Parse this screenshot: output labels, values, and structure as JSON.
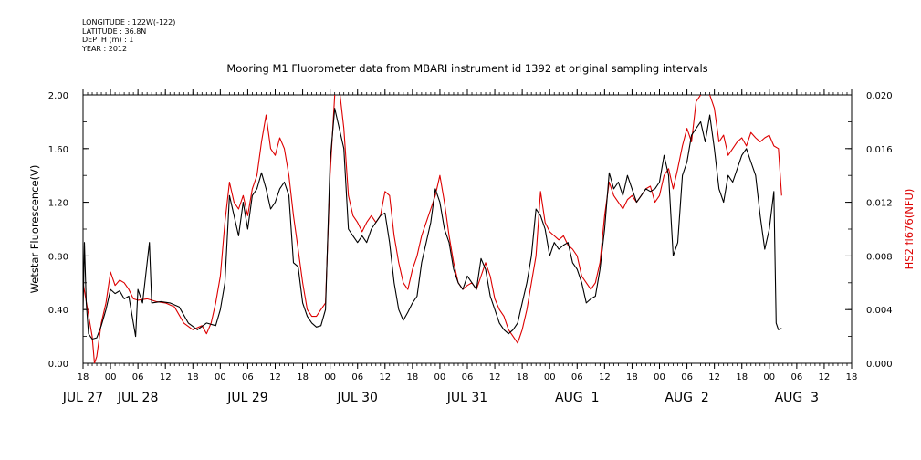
{
  "meta": {
    "longitude": "LONGITUDE : 122W(-122)",
    "latitude": "LATITUDE : 36.8N",
    "depth": "DEPTH (m) : 1",
    "year": "YEAR : 2012"
  },
  "chart_data": {
    "type": "line",
    "title": "Mooring M1 Fluorometer data from MBARI instrument id 1392 at original sampling intervals",
    "ylabel_left": "Wetstar Fluorescence(V)",
    "ylabel_right": "HS2 fl676(NFU)",
    "ylim_left": [
      0,
      2.0
    ],
    "ylim_right": [
      0,
      0.02
    ],
    "yticks_left": [
      "0.00",
      "0.40",
      "0.80",
      "1.20",
      "1.60",
      "2.00"
    ],
    "yticks_right": [
      "0.000",
      "0.004",
      "0.008",
      "0.012",
      "0.016",
      "0.020"
    ],
    "xlim_hours": [
      0,
      168
    ],
    "x_hour_ticks": [
      "18",
      "00",
      "06",
      "12",
      "18",
      "00",
      "06",
      "12",
      "18",
      "00",
      "06",
      "12",
      "18",
      "00",
      "06",
      "12",
      "18",
      "00",
      "06",
      "12",
      "18",
      "00",
      "06",
      "12",
      "18",
      "00",
      "06",
      "12",
      "18"
    ],
    "x_date_labels": [
      {
        "label": "JUL 27",
        "hour": 0
      },
      {
        "label": "JUL 28",
        "hour": 12
      },
      {
        "label": "JUL 29",
        "hour": 36
      },
      {
        "label": "JUL 30",
        "hour": 60
      },
      {
        "label": "JUL 31",
        "hour": 84
      },
      {
        "label": "AUG  1",
        "hour": 108
      },
      {
        "label": "AUG  2",
        "hour": 132
      },
      {
        "label": "AUG  3",
        "hour": 156
      }
    ],
    "x_start": "JUL 27 18:00",
    "x_unit": "hours after x_start",
    "series": [
      {
        "name": "Wetstar Fluorescence(V)",
        "axis": "left",
        "color": "#000000",
        "points": [
          [
            0,
            0.38
          ],
          [
            0.3,
            0.9
          ],
          [
            0.7,
            0.45
          ],
          [
            1.2,
            0.22
          ],
          [
            2,
            0.18
          ],
          [
            3,
            0.19
          ],
          [
            4,
            0.28
          ],
          [
            5,
            0.4
          ],
          [
            6,
            0.55
          ],
          [
            7,
            0.52
          ],
          [
            8,
            0.54
          ],
          [
            9,
            0.48
          ],
          [
            10,
            0.5
          ],
          [
            11.5,
            0.2
          ],
          [
            12,
            0.55
          ],
          [
            13,
            0.45
          ],
          [
            14.5,
            0.9
          ],
          [
            15,
            0.45
          ],
          [
            17,
            0.46
          ],
          [
            19,
            0.45
          ],
          [
            21,
            0.42
          ],
          [
            23,
            0.3
          ],
          [
            25,
            0.25
          ],
          [
            27,
            0.3
          ],
          [
            29,
            0.28
          ],
          [
            30,
            0.4
          ],
          [
            31,
            0.6
          ],
          [
            32,
            1.25
          ],
          [
            33,
            1.1
          ],
          [
            34,
            0.95
          ],
          [
            35,
            1.2
          ],
          [
            36,
            1.0
          ],
          [
            37,
            1.25
          ],
          [
            38,
            1.3
          ],
          [
            39,
            1.42
          ],
          [
            40,
            1.3
          ],
          [
            41,
            1.15
          ],
          [
            42,
            1.2
          ],
          [
            43,
            1.3
          ],
          [
            44,
            1.35
          ],
          [
            45,
            1.25
          ],
          [
            46,
            0.75
          ],
          [
            47,
            0.72
          ],
          [
            48,
            0.45
          ],
          [
            49,
            0.35
          ],
          [
            50,
            0.3
          ],
          [
            51,
            0.27
          ],
          [
            52,
            0.28
          ],
          [
            53,
            0.4
          ],
          [
            54,
            1.5
          ],
          [
            55,
            1.9
          ],
          [
            56,
            1.75
          ],
          [
            57,
            1.6
          ],
          [
            58,
            1.0
          ],
          [
            59,
            0.95
          ],
          [
            60,
            0.9
          ],
          [
            61,
            0.95
          ],
          [
            62,
            0.9
          ],
          [
            63,
            1.0
          ],
          [
            64,
            1.05
          ],
          [
            65,
            1.1
          ],
          [
            66,
            1.12
          ],
          [
            67,
            0.9
          ],
          [
            68,
            0.6
          ],
          [
            69,
            0.4
          ],
          [
            70,
            0.32
          ],
          [
            71,
            0.38
          ],
          [
            72,
            0.45
          ],
          [
            73,
            0.5
          ],
          [
            74,
            0.75
          ],
          [
            75,
            0.9
          ],
          [
            76,
            1.05
          ],
          [
            77,
            1.3
          ],
          [
            78,
            1.2
          ],
          [
            79,
            1.0
          ],
          [
            80,
            0.9
          ],
          [
            81,
            0.7
          ],
          [
            82,
            0.6
          ],
          [
            83,
            0.55
          ],
          [
            84,
            0.65
          ],
          [
            85,
            0.6
          ],
          [
            86,
            0.55
          ],
          [
            87,
            0.78
          ],
          [
            88,
            0.7
          ],
          [
            89,
            0.5
          ],
          [
            90,
            0.4
          ],
          [
            91,
            0.3
          ],
          [
            92,
            0.25
          ],
          [
            93,
            0.22
          ],
          [
            94,
            0.25
          ],
          [
            95,
            0.3
          ],
          [
            96,
            0.45
          ],
          [
            97,
            0.6
          ],
          [
            98,
            0.8
          ],
          [
            99,
            1.15
          ],
          [
            100,
            1.1
          ],
          [
            101,
            1.0
          ],
          [
            102,
            0.8
          ],
          [
            103,
            0.9
          ],
          [
            104,
            0.85
          ],
          [
            105,
            0.88
          ],
          [
            106,
            0.9
          ],
          [
            107,
            0.75
          ],
          [
            108,
            0.7
          ],
          [
            109,
            0.6
          ],
          [
            110,
            0.45
          ],
          [
            111,
            0.48
          ],
          [
            112,
            0.5
          ],
          [
            113,
            0.7
          ],
          [
            114,
            1.0
          ],
          [
            115,
            1.42
          ],
          [
            116,
            1.3
          ],
          [
            117,
            1.35
          ],
          [
            118,
            1.25
          ],
          [
            119,
            1.4
          ],
          [
            120,
            1.3
          ],
          [
            121,
            1.2
          ],
          [
            122,
            1.25
          ],
          [
            123,
            1.3
          ],
          [
            124,
            1.28
          ],
          [
            125,
            1.3
          ],
          [
            126,
            1.35
          ],
          [
            127,
            1.55
          ],
          [
            128,
            1.4
          ],
          [
            129,
            0.8
          ],
          [
            130,
            0.9
          ],
          [
            131,
            1.4
          ],
          [
            132,
            1.5
          ],
          [
            133,
            1.7
          ],
          [
            134,
            1.75
          ],
          [
            135,
            1.8
          ],
          [
            136,
            1.65
          ],
          [
            137,
            1.85
          ],
          [
            138,
            1.6
          ],
          [
            139,
            1.3
          ],
          [
            140,
            1.2
          ],
          [
            141,
            1.4
          ],
          [
            142,
            1.35
          ],
          [
            143,
            1.45
          ],
          [
            144,
            1.55
          ],
          [
            145,
            1.6
          ],
          [
            146,
            1.5
          ],
          [
            147,
            1.4
          ],
          [
            148,
            1.1
          ],
          [
            149,
            0.85
          ],
          [
            150,
            1.0
          ],
          [
            151,
            1.28
          ],
          [
            151.5,
            0.3
          ],
          [
            152,
            0.25
          ],
          [
            152.7,
            0.26
          ]
        ]
      },
      {
        "name": "HS2 fl676(NFU)",
        "axis": "right",
        "color": "#dd0000",
        "points": [
          [
            0,
            0.006
          ],
          [
            1,
            0.004
          ],
          [
            2,
            0.002
          ],
          [
            2.5,
            0.0
          ],
          [
            3,
            0.0005
          ],
          [
            4,
            0.003
          ],
          [
            5,
            0.0045
          ],
          [
            6,
            0.0068
          ],
          [
            7,
            0.0058
          ],
          [
            8,
            0.0062
          ],
          [
            9,
            0.006
          ],
          [
            10,
            0.0055
          ],
          [
            11,
            0.0048
          ],
          [
            12,
            0.0047
          ],
          [
            14,
            0.0048
          ],
          [
            16,
            0.0046
          ],
          [
            18,
            0.0045
          ],
          [
            20,
            0.0042
          ],
          [
            22,
            0.003
          ],
          [
            24,
            0.0025
          ],
          [
            26,
            0.0028
          ],
          [
            27,
            0.0022
          ],
          [
            28,
            0.003
          ],
          [
            29,
            0.0045
          ],
          [
            30,
            0.0065
          ],
          [
            31,
            0.0105
          ],
          [
            32,
            0.0135
          ],
          [
            33,
            0.012
          ],
          [
            34,
            0.0115
          ],
          [
            35,
            0.0125
          ],
          [
            36,
            0.011
          ],
          [
            37,
            0.013
          ],
          [
            38,
            0.014
          ],
          [
            39,
            0.0165
          ],
          [
            40,
            0.0185
          ],
          [
            41,
            0.016
          ],
          [
            42,
            0.0155
          ],
          [
            43,
            0.0168
          ],
          [
            44,
            0.016
          ],
          [
            45,
            0.014
          ],
          [
            46,
            0.011
          ],
          [
            47,
            0.0085
          ],
          [
            48,
            0.006
          ],
          [
            49,
            0.004
          ],
          [
            50,
            0.0035
          ],
          [
            51,
            0.0035
          ],
          [
            52,
            0.004
          ],
          [
            53,
            0.0045
          ],
          [
            54,
            0.014
          ],
          [
            55,
            0.02
          ],
          [
            56,
            0.0205
          ],
          [
            57,
            0.0175
          ],
          [
            58,
            0.0125
          ],
          [
            59,
            0.011
          ],
          [
            60,
            0.0105
          ],
          [
            61,
            0.0098
          ],
          [
            62,
            0.0105
          ],
          [
            63,
            0.011
          ],
          [
            64,
            0.0105
          ],
          [
            65,
            0.011
          ],
          [
            66,
            0.0128
          ],
          [
            67,
            0.0125
          ],
          [
            68,
            0.0095
          ],
          [
            69,
            0.0075
          ],
          [
            70,
            0.006
          ],
          [
            71,
            0.0055
          ],
          [
            72,
            0.007
          ],
          [
            73,
            0.008
          ],
          [
            74,
            0.0095
          ],
          [
            75,
            0.0105
          ],
          [
            76,
            0.0115
          ],
          [
            77,
            0.0125
          ],
          [
            78,
            0.014
          ],
          [
            79,
            0.012
          ],
          [
            80,
            0.0095
          ],
          [
            81,
            0.0075
          ],
          [
            82,
            0.006
          ],
          [
            83,
            0.0055
          ],
          [
            84,
            0.0058
          ],
          [
            85,
            0.006
          ],
          [
            86,
            0.0055
          ],
          [
            87,
            0.0065
          ],
          [
            88,
            0.0075
          ],
          [
            89,
            0.0065
          ],
          [
            90,
            0.0048
          ],
          [
            91,
            0.004
          ],
          [
            92,
            0.0035
          ],
          [
            93,
            0.0025
          ],
          [
            94,
            0.002
          ],
          [
            95,
            0.0015
          ],
          [
            96,
            0.0025
          ],
          [
            97,
            0.004
          ],
          [
            98,
            0.006
          ],
          [
            99,
            0.008
          ],
          [
            100,
            0.0128
          ],
          [
            101,
            0.0105
          ],
          [
            102,
            0.0098
          ],
          [
            103,
            0.0095
          ],
          [
            104,
            0.0092
          ],
          [
            105,
            0.0095
          ],
          [
            106,
            0.0088
          ],
          [
            107,
            0.0085
          ],
          [
            108,
            0.008
          ],
          [
            109,
            0.0065
          ],
          [
            110,
            0.006
          ],
          [
            111,
            0.0055
          ],
          [
            112,
            0.006
          ],
          [
            113,
            0.0075
          ],
          [
            114,
            0.011
          ],
          [
            115,
            0.0135
          ],
          [
            116,
            0.0125
          ],
          [
            117,
            0.012
          ],
          [
            118,
            0.0115
          ],
          [
            119,
            0.0122
          ],
          [
            120,
            0.0125
          ],
          [
            121,
            0.012
          ],
          [
            122,
            0.0125
          ],
          [
            123,
            0.013
          ],
          [
            124,
            0.0132
          ],
          [
            125,
            0.012
          ],
          [
            126,
            0.0125
          ],
          [
            127,
            0.014
          ],
          [
            128,
            0.0145
          ],
          [
            129,
            0.013
          ],
          [
            130,
            0.0145
          ],
          [
            131,
            0.0162
          ],
          [
            132,
            0.0175
          ],
          [
            133,
            0.0165
          ],
          [
            134,
            0.0195
          ],
          [
            135,
            0.02
          ],
          [
            136,
            0.0205
          ],
          [
            137,
            0.02
          ],
          [
            138,
            0.019
          ],
          [
            139,
            0.0165
          ],
          [
            140,
            0.017
          ],
          [
            141,
            0.0155
          ],
          [
            142,
            0.016
          ],
          [
            143,
            0.0165
          ],
          [
            144,
            0.0168
          ],
          [
            145,
            0.0162
          ],
          [
            146,
            0.0172
          ],
          [
            147,
            0.0168
          ],
          [
            148,
            0.0165
          ],
          [
            149,
            0.0168
          ],
          [
            150,
            0.017
          ],
          [
            151,
            0.0162
          ],
          [
            152,
            0.016
          ],
          [
            152.7,
            0.0125
          ]
        ]
      }
    ]
  }
}
